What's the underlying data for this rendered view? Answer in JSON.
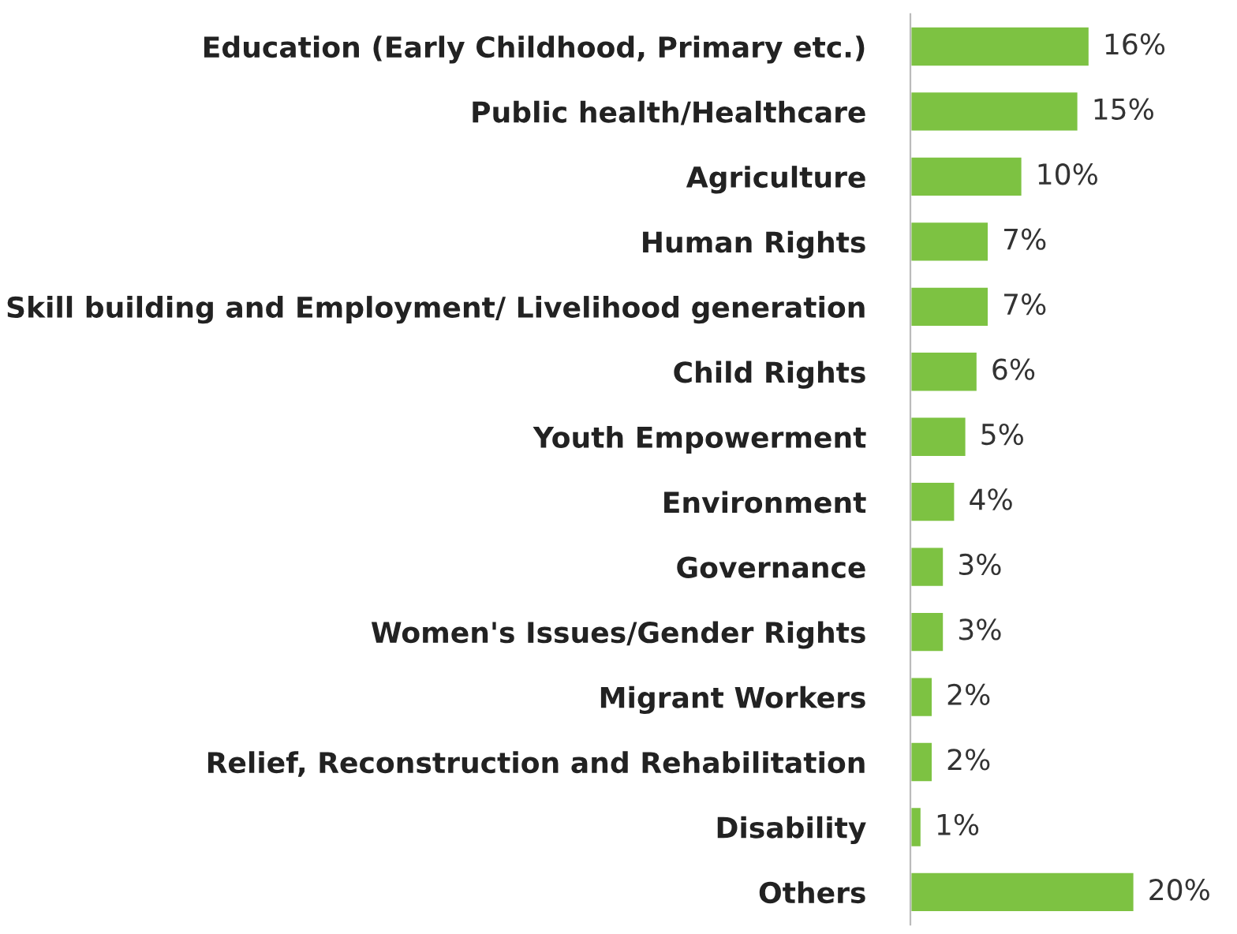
{
  "chart_data": {
    "type": "bar",
    "orientation": "horizontal",
    "categories": [
      "Education (Early Childhood, Primary etc.)",
      "Public health/Healthcare",
      "Agriculture",
      "Human Rights",
      "Skill building and Employment/ Livelihood generation",
      "Child Rights",
      "Youth Empowerment",
      "Environment",
      "Governance",
      "Women's Issues/Gender Rights",
      "Migrant Workers",
      "Relief, Reconstruction and Rehabilitation",
      "Disability",
      "Others"
    ],
    "values": [
      16,
      15,
      10,
      7,
      7,
      6,
      5,
      4,
      3,
      3,
      2,
      2,
      1,
      20
    ],
    "value_labels": [
      "16%",
      "15%",
      "10%",
      "7%",
      "7%",
      "6%",
      "5%",
      "4%",
      "3%",
      "3%",
      "2%",
      "2%",
      "1%",
      "20%"
    ],
    "color": "#7dc242",
    "xlim": [
      0,
      20
    ],
    "tick_labels": "y",
    "grid": false,
    "legend": false
  }
}
